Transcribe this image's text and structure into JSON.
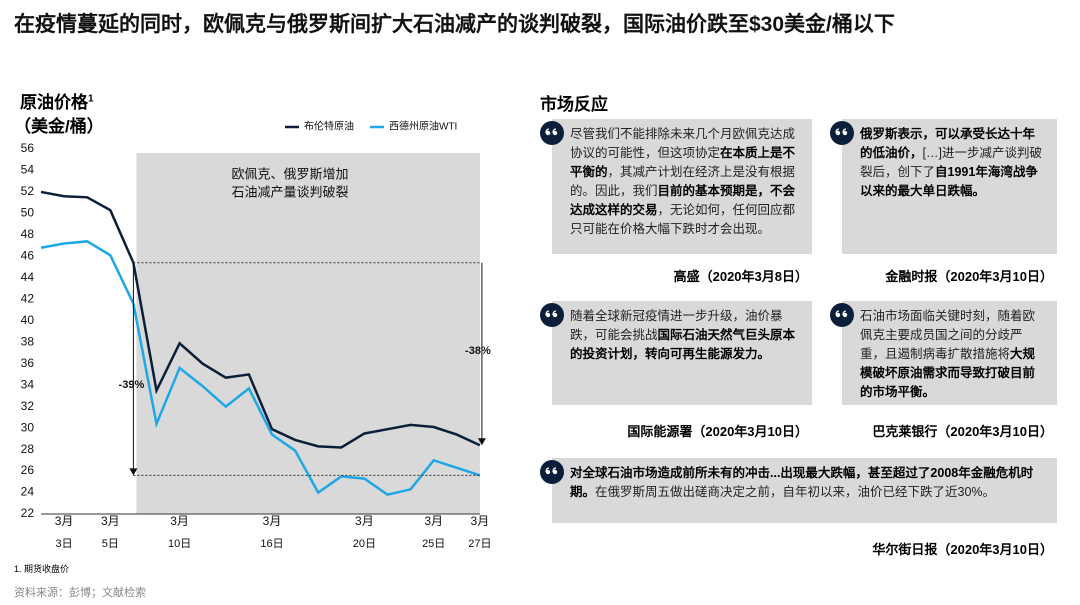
{
  "title": "在疫情蔓延的同时，欧佩克与俄罗斯间扩大石油减产的谈判破裂，国际油价跌至$30美金/桶以下",
  "chart_data": {
    "type": "line",
    "title": "原油价格",
    "title_note": "1",
    "unit": "（美金/桶）",
    "categories": [
      null,
      [
        "3月",
        "3日"
      ],
      null,
      [
        "3月",
        "5日"
      ],
      null,
      null,
      [
        "3月",
        "10日"
      ],
      null,
      null,
      null,
      [
        "3月",
        "16日"
      ],
      null,
      null,
      null,
      [
        "3月",
        "20日"
      ],
      null,
      null,
      [
        "3月",
        "25日"
      ],
      null,
      [
        "3月",
        "27日"
      ]
    ],
    "series": [
      {
        "name": "布伦特原油",
        "color": "#0b1f3a",
        "values": [
          52.0,
          51.6,
          51.5,
          50.3,
          45.4,
          33.5,
          37.9,
          36.0,
          34.7,
          35.0,
          29.9,
          28.9,
          28.3,
          28.2,
          29.5,
          29.9,
          30.3,
          30.1,
          29.4,
          28.4
        ]
      },
      {
        "name": "西德州原油WTI",
        "color": "#1ea7e6",
        "values": [
          46.8,
          47.2,
          47.4,
          46.1,
          41.6,
          30.4,
          35.6,
          33.9,
          32.0,
          33.7,
          29.4,
          27.9,
          24.0,
          25.5,
          25.3,
          23.8,
          24.3,
          27.0,
          26.3,
          25.6
        ]
      }
    ],
    "ylim": [
      22,
      56
    ],
    "yticks": [
      22,
      24,
      26,
      28,
      30,
      32,
      34,
      36,
      38,
      40,
      42,
      44,
      46,
      48,
      50,
      52,
      54,
      56
    ],
    "shaded_note": [
      "欧佩克、俄罗斯增加",
      "石油减产量谈判破裂"
    ],
    "drops": [
      "-39%",
      "-38%"
    ],
    "footnote": "1.  期货收盘价"
  },
  "reactions": {
    "title": "市场反应",
    "quotes": [
      {
        "parts": [
          {
            "text": "尽管我们不能排除未来几个月欧佩克达成协议的可能性，但这项协定",
            "bold": false
          },
          {
            "text": "在本质上是不平衡的",
            "bold": true
          },
          {
            "text": "，其减产计划在经济上是没有根据的。因此，我们",
            "bold": false
          },
          {
            "text": "目前的基本预期是，不会达成这样的交易",
            "bold": true
          },
          {
            "text": "，无论如何，任何回应都只可能在价格大幅下跌时才会出现。",
            "bold": false
          }
        ],
        "source": "高盛（2020年3月8日）"
      },
      {
        "parts": [
          {
            "text": "俄罗斯表示，可以承受长达十年的低油价，",
            "bold": true
          },
          {
            "text": "[…]进一步减产谈判破裂后，创下了",
            "bold": false
          },
          {
            "text": "自1991年海湾战争以来的最大单日跌幅。",
            "bold": true
          }
        ],
        "source": "金融时报（2020年3月10日）"
      },
      {
        "parts": [
          {
            "text": "随着全球新冠疫情进一步升级，油价暴跌，可能会挑战",
            "bold": false
          },
          {
            "text": "国际石油天然气巨头原本的投资计划，转向可再生能源发力。",
            "bold": true
          }
        ],
        "source": "国际能源署（2020年3月10日）"
      },
      {
        "parts": [
          {
            "text": "石油市场面临关键时刻，随着欧佩克主要成员国之间的分歧严重，且遏制病毒扩散措施将",
            "bold": false
          },
          {
            "text": "大规模破坏原油需求而导致打破目前的市场平衡。",
            "bold": true
          }
        ],
        "source": "巴克莱银行（2020年3月10日）"
      },
      {
        "parts": [
          {
            "text": "对全球石油市场造成前所未有的冲击...出现最大跌幅，甚至超过了2008年金融危机时期。",
            "bold": true
          },
          {
            "text": "在俄罗斯周五做出磋商决定之前，自年初以来，油价已经下跌了近30%。",
            "bold": false
          }
        ],
        "source": "华尔街日报（2020年3月10日）"
      }
    ]
  },
  "source": "资料来源：彭博；文献检索"
}
